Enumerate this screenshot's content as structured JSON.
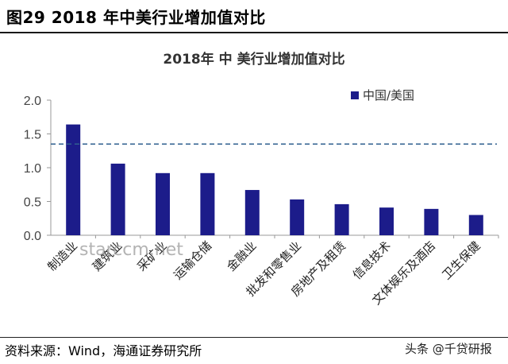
{
  "figure": {
    "heading": "图29 2018 年中美行业增加值对比",
    "source": "资料来源：Wind，海通证券研究所",
    "watermark_text": "头条 @千贷研报",
    "watermark_icon": "camera-icon"
  },
  "chart_data": {
    "type": "bar",
    "title": "2018年 中 美行业增加值对比",
    "categories": [
      "制造业",
      "建筑业",
      "采矿业",
      "运输仓储",
      "金融业",
      "批发和零售业",
      "房地产及租赁",
      "信息技术",
      "文体娱乐及酒店",
      "卫生保健"
    ],
    "series": [
      {
        "name": "中国/美国",
        "values": [
          1.64,
          1.06,
          0.92,
          0.92,
          0.67,
          0.53,
          0.46,
          0.41,
          0.39,
          0.3
        ],
        "color": "#1c1c8a"
      }
    ],
    "reference_line": {
      "value": 1.35,
      "style": "dashed",
      "color": "#2f5f8f"
    },
    "xlabel": "",
    "ylabel": "",
    "ylim": [
      0,
      2.0
    ],
    "yticks": [
      "0.0",
      "0.5",
      "1.0",
      "1.5",
      "2.0"
    ],
    "legend_position": "top-right",
    "grid": false,
    "watermark_overlay": "starccm.net"
  }
}
